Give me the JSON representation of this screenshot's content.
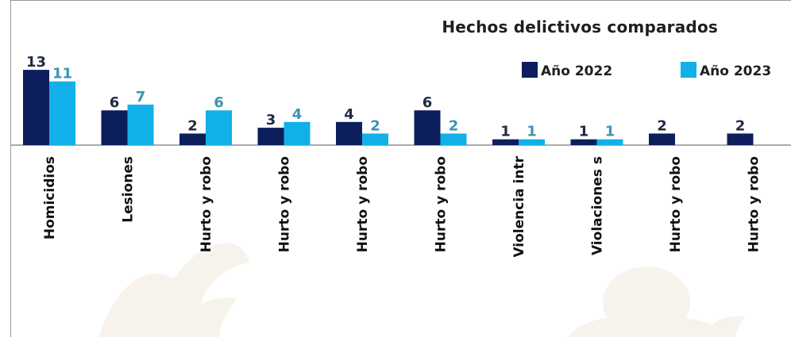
{
  "chart_data": {
    "type": "bar",
    "title": "Hechos delictivos comparados",
    "categories": [
      "Homicidios",
      "Lesiones",
      "Hurto y robo",
      "Hurto y robo",
      "Hurto y robo",
      "Hurto y robo",
      "Violencia intr",
      "Violaciones s",
      "Hurto y robo",
      "Hurto y robo"
    ],
    "series": [
      {
        "name": "Año 2022",
        "color": "#0c1f5c",
        "label_color": "#1f2a44",
        "values": [
          13,
          6,
          2,
          3,
          4,
          6,
          1,
          1,
          2,
          2
        ]
      },
      {
        "name": "Año 2023",
        "color": "#11b0e8",
        "label_color": "#3b94b3",
        "values": [
          11,
          7,
          6,
          4,
          2,
          2,
          1,
          1,
          null,
          null
        ]
      }
    ],
    "ylim": [
      0,
      13
    ],
    "legend": "top-right",
    "grid": false
  }
}
